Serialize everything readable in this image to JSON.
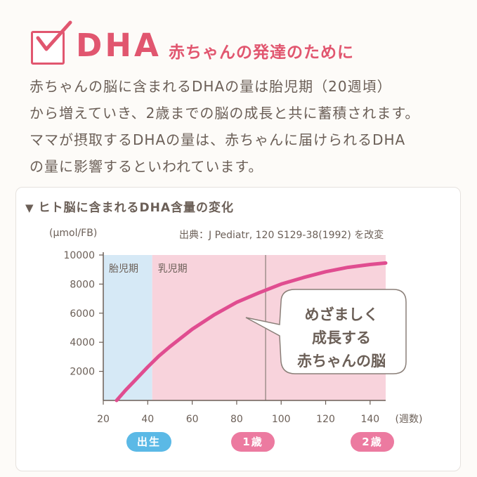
{
  "header": {
    "title": "DHA",
    "subtitle": "赤ちゃんの発達のために",
    "check_color": "#e1566f",
    "accent_color": "#e1566f"
  },
  "intro": {
    "lines": [
      "赤ちゃんの脳に含まれるDHAの量は胎児期（20週頃）",
      "から増えていき、2歳までの脳の成長と共に蓄積されます。",
      "ママが摂取するDHAの量は、赤ちゃんに届けられるDHA",
      "の量に影響するといわれています。"
    ]
  },
  "panel": {
    "title": "ヒト脳に含まれるDHA含量の変化",
    "source": "出典：J Pediatr, 120 S129-38(1992) を改変"
  },
  "bubble": {
    "lines": [
      "めざましく",
      "成長する",
      "赤ちゃんの脳"
    ]
  },
  "milestones": {
    "birth": "出生",
    "one_year": "1歳",
    "two_years": "2歳"
  },
  "chart_data": {
    "type": "line",
    "title": "ヒト脳に含まれるDHA含量の変化",
    "ylabel": "(μmol/FB)",
    "xlabel": "(週数)",
    "xlim": [
      20,
      147
    ],
    "ylim": [
      0,
      10000
    ],
    "x_ticks": [
      20,
      40,
      60,
      80,
      100,
      120,
      140
    ],
    "y_ticks": [
      2000,
      4000,
      6000,
      8000,
      10000
    ],
    "grid": false,
    "regions": [
      {
        "label": "胎児期",
        "from": 20,
        "to": 42,
        "color": "#d6e9f6"
      },
      {
        "label": "乳児期",
        "from": 42,
        "to": 147,
        "color": "#f8d3dc"
      }
    ],
    "milestone_line_x": 93,
    "series": [
      {
        "color": "#e04d90",
        "x": [
          26,
          30,
          35,
          40,
          45,
          50,
          60,
          70,
          80,
          90,
          100,
          110,
          120,
          130,
          140,
          147
        ],
        "y": [
          0,
          700,
          1500,
          2300,
          3050,
          3700,
          4900,
          5900,
          6750,
          7400,
          8000,
          8450,
          8850,
          9150,
          9350,
          9450
        ]
      }
    ]
  }
}
